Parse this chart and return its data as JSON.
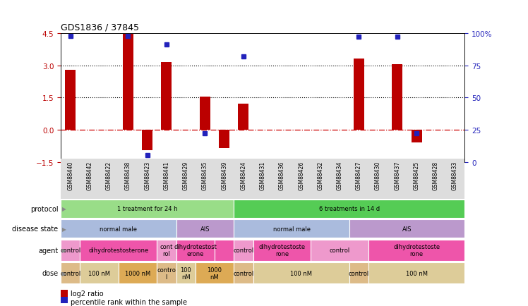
{
  "title": "GDS1836 / 37845",
  "samples": [
    "GSM88440",
    "GSM88442",
    "GSM88422",
    "GSM88438",
    "GSM88423",
    "GSM88441",
    "GSM88429",
    "GSM88435",
    "GSM88439",
    "GSM88424",
    "GSM88431",
    "GSM88436",
    "GSM88426",
    "GSM88432",
    "GSM88434",
    "GSM88427",
    "GSM88430",
    "GSM88437",
    "GSM88425",
    "GSM88428",
    "GSM88433"
  ],
  "log2_ratio": [
    2.8,
    0,
    0,
    4.45,
    -0.95,
    3.15,
    0,
    1.55,
    -0.85,
    1.2,
    0,
    0,
    0,
    0,
    0,
    3.3,
    0,
    3.05,
    -0.6,
    0,
    0
  ],
  "percentile": [
    98,
    null,
    null,
    98,
    5,
    91,
    null,
    22,
    null,
    82,
    null,
    null,
    null,
    null,
    null,
    97,
    null,
    97,
    22,
    null,
    null
  ],
  "ylim_left": [
    -1.5,
    4.5
  ],
  "ylim_right": [
    0,
    100
  ],
  "yticks_left": [
    -1.5,
    0,
    1.5,
    3.0,
    4.5
  ],
  "yticks_right": [
    0,
    25,
    50,
    75,
    100
  ],
  "hlines": [
    3.0,
    1.5
  ],
  "bar_color": "#bb0000",
  "dot_color": "#2222bb",
  "zero_line_color": "#cc0000",
  "protocol_spans": [
    {
      "start": 0,
      "end": 9,
      "text": "1 treatment for 24 h",
      "color": "#99dd88"
    },
    {
      "start": 9,
      "end": 21,
      "text": "6 treatments in 14 d",
      "color": "#55cc55"
    }
  ],
  "disease_spans": [
    {
      "start": 0,
      "end": 6,
      "text": "normal male",
      "color": "#aabbdd"
    },
    {
      "start": 6,
      "end": 9,
      "text": "AIS",
      "color": "#bb99cc"
    },
    {
      "start": 9,
      "end": 15,
      "text": "normal male",
      "color": "#aabbdd"
    },
    {
      "start": 15,
      "end": 21,
      "text": "AIS",
      "color": "#bb99cc"
    }
  ],
  "agent_spans": [
    {
      "start": 0,
      "end": 1,
      "text": "control",
      "color": "#ee99cc"
    },
    {
      "start": 1,
      "end": 5,
      "text": "dihydrotestosterone",
      "color": "#ee55aa"
    },
    {
      "start": 5,
      "end": 6,
      "text": "cont\nrol",
      "color": "#ee99cc"
    },
    {
      "start": 6,
      "end": 8,
      "text": "dihydrotestost\nerone",
      "color": "#ee55aa"
    },
    {
      "start": 8,
      "end": 9,
      "text": "",
      "color": "#ee55aa"
    },
    {
      "start": 9,
      "end": 10,
      "text": "control",
      "color": "#ee99cc"
    },
    {
      "start": 10,
      "end": 13,
      "text": "dihydrotestoste\nrone",
      "color": "#ee55aa"
    },
    {
      "start": 13,
      "end": 16,
      "text": "control",
      "color": "#ee99cc"
    },
    {
      "start": 16,
      "end": 21,
      "text": "dihydrotestoste\nrone",
      "color": "#ee55aa"
    }
  ],
  "dose_spans": [
    {
      "start": 0,
      "end": 1,
      "text": "control",
      "color": "#ddbb88"
    },
    {
      "start": 1,
      "end": 3,
      "text": "100 nM",
      "color": "#ddcc99"
    },
    {
      "start": 3,
      "end": 5,
      "text": "1000 nM",
      "color": "#ddaa55"
    },
    {
      "start": 5,
      "end": 6,
      "text": "contro\nl",
      "color": "#ddbb88"
    },
    {
      "start": 6,
      "end": 7,
      "text": "100\nnM",
      "color": "#ddcc99"
    },
    {
      "start": 7,
      "end": 9,
      "text": "1000\nnM",
      "color": "#ddaa55"
    },
    {
      "start": 9,
      "end": 10,
      "text": "control",
      "color": "#ddbb88"
    },
    {
      "start": 10,
      "end": 15,
      "text": "100 nM",
      "color": "#ddcc99"
    },
    {
      "start": 15,
      "end": 16,
      "text": "control",
      "color": "#ddbb88"
    },
    {
      "start": 16,
      "end": 21,
      "text": "100 nM",
      "color": "#ddcc99"
    }
  ],
  "legend": [
    {
      "color": "#bb0000",
      "label": "log2 ratio"
    },
    {
      "color": "#2222bb",
      "label": "percentile rank within the sample"
    }
  ],
  "fig_width": 7.48,
  "fig_height": 4.35
}
